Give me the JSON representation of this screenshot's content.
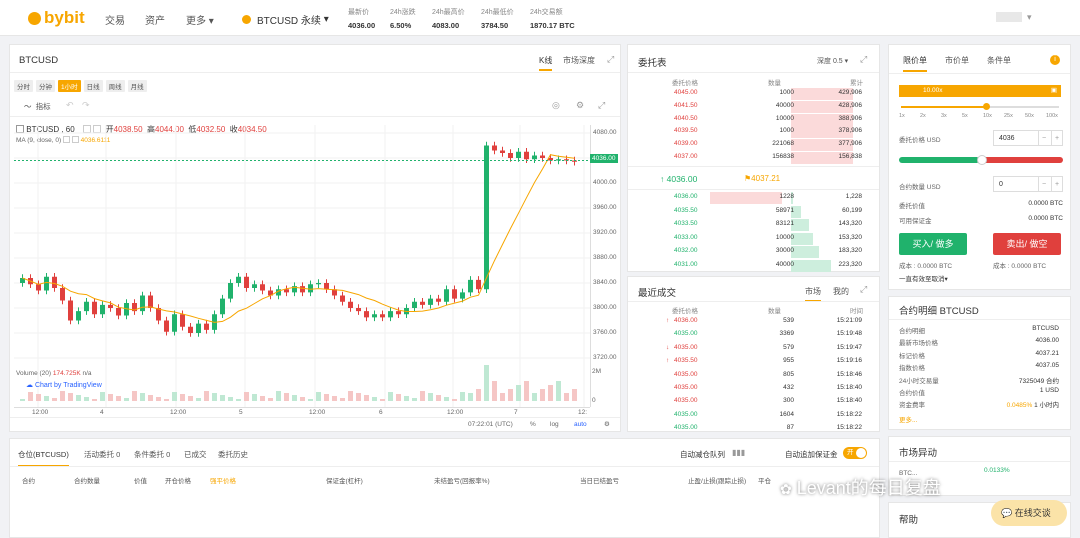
{
  "header": {
    "logo": "bybit",
    "nav": [
      "交易",
      "资产",
      "更多"
    ],
    "more_chevron": "▾",
    "symbol": "BTCUSD 永续",
    "symbol_chevron": "▾",
    "stats": [
      {
        "label": "最新价",
        "value": "4036.00",
        "color": "green"
      },
      {
        "label": "24h涨跌",
        "value": "6.50%",
        "color": "green"
      },
      {
        "label": "24h最高价",
        "value": "4083.00",
        "color": "dark"
      },
      {
        "label": "24h最低价",
        "value": "3784.50",
        "color": "dark"
      },
      {
        "label": "24h交易额",
        "value": "1870.17 BTC",
        "color": "dark"
      }
    ]
  },
  "chart_panel": {
    "title": "BTCUSD",
    "tabs": [
      "K线",
      "市场深度"
    ],
    "intervals": [
      "分时",
      "分钟",
      "1小时",
      "日线",
      "周线",
      "月线"
    ],
    "interval_chevron": "▾",
    "indicator_label": "指标",
    "legend": "BTCUSD , 60",
    "ohlc": {
      "open_label": "开",
      "open": "4038.50",
      "high_label": "高",
      "high": "4044.00",
      "low_label": "低",
      "low": "4032.50",
      "close_label": "收",
      "close": "4034.50"
    },
    "ma_label": "MA (9, close, 0)",
    "ma_value": "4036.6111",
    "price_ticks": [
      "4080.00",
      "4040.00",
      "4000.00",
      "3960.00",
      "3920.00",
      "3880.00",
      "3840.00",
      "3800.00",
      "3760.00",
      "3720.00"
    ],
    "current_price": "4036.00",
    "volume_label": "Volume (20)",
    "volume_value": "174.725K",
    "volume_na": "n/a",
    "volume_ticks": [
      "2M",
      "0"
    ],
    "tradingview": "Chart by TradingView",
    "time_ticks": [
      "12:00",
      "4",
      "12:00",
      "5",
      "12:00",
      "6",
      "12:00",
      "7",
      "12:"
    ],
    "footer": {
      "time": "07:22:01 (UTC)",
      "percent": "%",
      "log": "log",
      "auto": "auto"
    }
  },
  "orderbook": {
    "title": "委托表",
    "depth": "深度 0.5",
    "depth_chevron": "▾",
    "cols": [
      "委托价格",
      "数量",
      "累计"
    ],
    "asks": [
      [
        "4045.00",
        "1000",
        "429,906"
      ],
      [
        "4041.50",
        "40000",
        "428,906"
      ],
      [
        "4040.50",
        "10000",
        "388,906"
      ],
      [
        "4039.50",
        "1000",
        "378,906"
      ],
      [
        "4039.00",
        "221068",
        "377,906"
      ],
      [
        "4037.00",
        "156838",
        "156,838"
      ]
    ],
    "last_price": "4036.00",
    "mark_price": "4037.21",
    "bids": [
      [
        "4036.00",
        "1228",
        "1,228"
      ],
      [
        "4035.50",
        "58971",
        "60,199"
      ],
      [
        "4033.50",
        "83121",
        "143,320"
      ],
      [
        "4033.00",
        "10000",
        "153,320"
      ],
      [
        "4032.00",
        "30000",
        "183,320"
      ],
      [
        "4031.00",
        "40000",
        "223,320"
      ]
    ]
  },
  "trades": {
    "title": "最近成交",
    "tabs": [
      "市场",
      "我的"
    ],
    "cols": [
      "委托价格",
      "数量",
      "时间"
    ],
    "rows": [
      [
        "4036.00",
        "539",
        "15:21:09",
        "red",
        true
      ],
      [
        "4035.00",
        "3369",
        "15:19:48",
        "green",
        false
      ],
      [
        "4035.00",
        "579",
        "15:19:47",
        "red",
        true
      ],
      [
        "4035.50",
        "955",
        "15:19:16",
        "red",
        true
      ],
      [
        "4035.00",
        "805",
        "15:18:46",
        "red",
        false
      ],
      [
        "4035.00",
        "432",
        "15:18:40",
        "red",
        false
      ],
      [
        "4035.00",
        "300",
        "15:18:40",
        "red",
        false
      ],
      [
        "4035.00",
        "1604",
        "15:18:22",
        "green",
        false
      ],
      [
        "4035.00",
        "87",
        "15:18:22",
        "green",
        false
      ]
    ]
  },
  "positions": {
    "tabs": [
      "仓位(BTCUSD)",
      "活动委托 0",
      "条件委托 0",
      "已成交",
      "委托历史"
    ],
    "auto_close": "自动减仓队列",
    "auto_margin": "自动追加保证金",
    "toggle": "开",
    "cols": [
      "合约",
      "合约数量",
      "价值",
      "开仓价格",
      "强平价格",
      "保证金(杠杆)",
      "未结盈亏(回报率%)",
      "当日已结盈亏",
      "止盈/止损(跟踪止损)",
      "平仓"
    ]
  },
  "order_form": {
    "tabs": [
      "限价单",
      "市价单",
      "条件单"
    ],
    "leverage": "10.00x",
    "lev_marks": [
      "1x",
      "2x",
      "3x",
      "5x",
      "10x",
      "25x",
      "50x",
      "100x"
    ],
    "price_label": "委托价格 USD",
    "price_value": "4036",
    "qty_label": "合约数量 USD",
    "qty_value": "0",
    "order_value_label": "委托价值",
    "order_value": "0.0000 BTC",
    "available_label": "可用保证金",
    "available": "0.0000 BTC",
    "buy": "买入/ 做多",
    "sell": "卖出/ 做空",
    "buy_cost": "成本 : 0.0000 BTC",
    "sell_cost": "成本 : 0.0000 BTC",
    "tif": "一直有效至取消",
    "tif_chevron": "▾"
  },
  "contract": {
    "title": "合约明细 BTCUSD",
    "rows": [
      [
        "合约明细",
        "BTCUSD"
      ],
      [
        "最新市场价格",
        "4036.00"
      ],
      [
        "标记价格",
        "4037.21"
      ],
      [
        "指数价格",
        "4037.05"
      ],
      [
        "24小时交易量",
        "7325049 合约"
      ],
      [
        "合约价值",
        "1 USD"
      ],
      [
        "资金费率",
        "0.0485% 1 小时内"
      ]
    ],
    "more": "更多..."
  },
  "market": {
    "title": "市场异动",
    "row": "BTC...",
    "pct": "0.0133%"
  },
  "help": {
    "title": "帮助"
  },
  "watermark": "Levant的每日复盘",
  "chat": "在线交谈",
  "colors": {
    "green": "#20b26c",
    "red": "#e0403d",
    "accent": "#f7a600"
  }
}
